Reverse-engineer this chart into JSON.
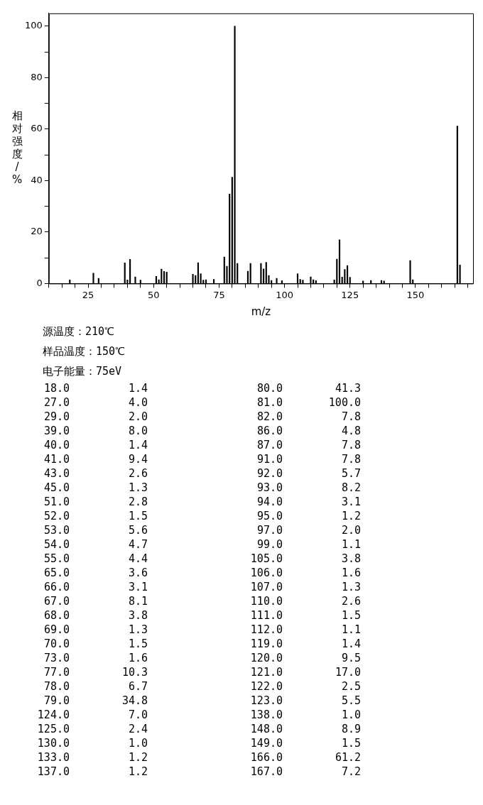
{
  "chart_data": [
    {
      "type": "bar",
      "xlabel": "m/z",
      "ylabel": "相对强度/%",
      "x": [
        18,
        27,
        29,
        39,
        40,
        41,
        43,
        45,
        51,
        52,
        53,
        54,
        55,
        65,
        66,
        67,
        68,
        69,
        70,
        73,
        77,
        78,
        79,
        80,
        81,
        82,
        86,
        87,
        91,
        92,
        93,
        94,
        95,
        97,
        99,
        105,
        106,
        107,
        110,
        111,
        112,
        119,
        120,
        121,
        122,
        123,
        124,
        125,
        130,
        133,
        137,
        138,
        148,
        149,
        166,
        167
      ],
      "values": [
        1.4,
        4.0,
        2.0,
        8.0,
        1.4,
        9.4,
        2.6,
        1.3,
        2.8,
        1.5,
        5.6,
        4.7,
        4.4,
        3.6,
        3.1,
        8.1,
        3.8,
        1.3,
        1.5,
        1.6,
        10.3,
        6.7,
        34.8,
        41.3,
        100.0,
        7.8,
        4.8,
        7.8,
        7.8,
        5.7,
        8.2,
        3.1,
        1.2,
        2.0,
        1.1,
        3.8,
        1.6,
        1.3,
        2.6,
        1.5,
        1.1,
        1.4,
        9.5,
        17.0,
        2.5,
        5.5,
        7.0,
        2.4,
        1.0,
        1.2,
        1.2,
        1.0,
        8.9,
        1.5,
        61.2,
        7.2
      ],
      "color": "#000000",
      "xlim": [
        10,
        172
      ],
      "xticks": [
        {
          "value": 10,
          "label": null
        },
        {
          "value": 15,
          "label": null
        },
        {
          "value": 20,
          "label": null
        },
        25,
        {
          "value": 30,
          "label": null
        },
        {
          "value": 35,
          "label": null
        },
        {
          "value": 40,
          "label": null
        },
        {
          "value": 45,
          "label": null
        },
        50,
        {
          "value": 55,
          "label": null
        },
        {
          "value": 60,
          "label": null
        },
        {
          "value": 65,
          "label": null
        },
        {
          "value": 70,
          "label": null
        },
        75,
        {
          "value": 80,
          "label": null
        },
        {
          "value": 85,
          "label": null
        },
        {
          "value": 90,
          "label": null
        },
        {
          "value": 95,
          "label": null
        },
        100,
        {
          "value": 105,
          "label": null
        },
        {
          "value": 110,
          "label": null
        },
        {
          "value": 115,
          "label": null
        },
        {
          "value": 120,
          "label": null
        },
        125,
        {
          "value": 130,
          "label": null
        },
        {
          "value": 135,
          "label": null
        },
        {
          "value": 140,
          "label": null
        },
        {
          "value": 145,
          "label": null
        },
        150,
        {
          "value": 155,
          "label": null
        },
        {
          "value": 160,
          "label": null
        },
        {
          "value": 165,
          "label": null
        },
        {
          "value": 170,
          "label": null
        }
      ],
      "ylim": [
        0,
        105
      ],
      "yticks": [
        0,
        {
          "value": 10,
          "label": null
        },
        20,
        {
          "value": 30,
          "label": null
        },
        40,
        {
          "value": 50,
          "label": null
        },
        60,
        {
          "value": 70,
          "label": null
        },
        80,
        {
          "value": 90,
          "label": null
        },
        100
      ],
      "grid": false,
      "legend": false,
      "annotations": [
        "源温度：210℃",
        "样品温度：150℃",
        "电子能量：75eV"
      ]
    },
    {
      "type": "other",
      "categories": [
        "18.0",
        "27.0",
        "29.0",
        "39.0",
        "40.0",
        "41.0",
        "43.0",
        "45.0",
        "51.0",
        "52.0",
        "53.0",
        "54.0",
        "55.0",
        "65.0",
        "66.0",
        "67.0",
        "68.0",
        "69.0",
        "70.0",
        "73.0",
        "77.0",
        "78.0",
        "79.0",
        "80.0",
        "81.0",
        "82.0",
        "86.0",
        "87.0",
        "91.0",
        "92.0",
        "93.0",
        "94.0",
        "95.0",
        "97.0",
        "99.0",
        "105.0",
        "106.0",
        "107.0",
        "110.0",
        "111.0",
        "112.0",
        "119.0",
        "120.0",
        "121.0",
        "122.0",
        "123.0",
        "124.0",
        "125.0",
        "130.0",
        "133.0",
        "137.0",
        "138.0",
        "148.0",
        "149.0",
        "166.0",
        "167.0"
      ],
      "value_labels": [
        "1.4",
        "4.0",
        "2.0",
        "8.0",
        "1.4",
        "9.4",
        "2.6",
        "1.3",
        "2.8",
        "1.5",
        "5.6",
        "4.7",
        "4.4",
        "3.6",
        "3.1",
        "8.1",
        "3.8",
        "1.3",
        "1.5",
        "1.6",
        "10.3",
        "6.7",
        "34.8",
        "41.3",
        "100.0",
        "7.8",
        "4.8",
        "7.8",
        "7.8",
        "5.7",
        "8.2",
        "3.1",
        "1.2",
        "2.0",
        "1.1",
        "3.8",
        "1.6",
        "1.3",
        "2.6",
        "1.5",
        "1.1",
        "1.4",
        "9.5",
        "17.0",
        "2.5",
        "5.5",
        "7.0",
        "2.4",
        "1.0",
        "1.2",
        "1.2",
        "1.0",
        "8.9",
        "1.5",
        "61.2",
        "7.2"
      ]
    }
  ]
}
